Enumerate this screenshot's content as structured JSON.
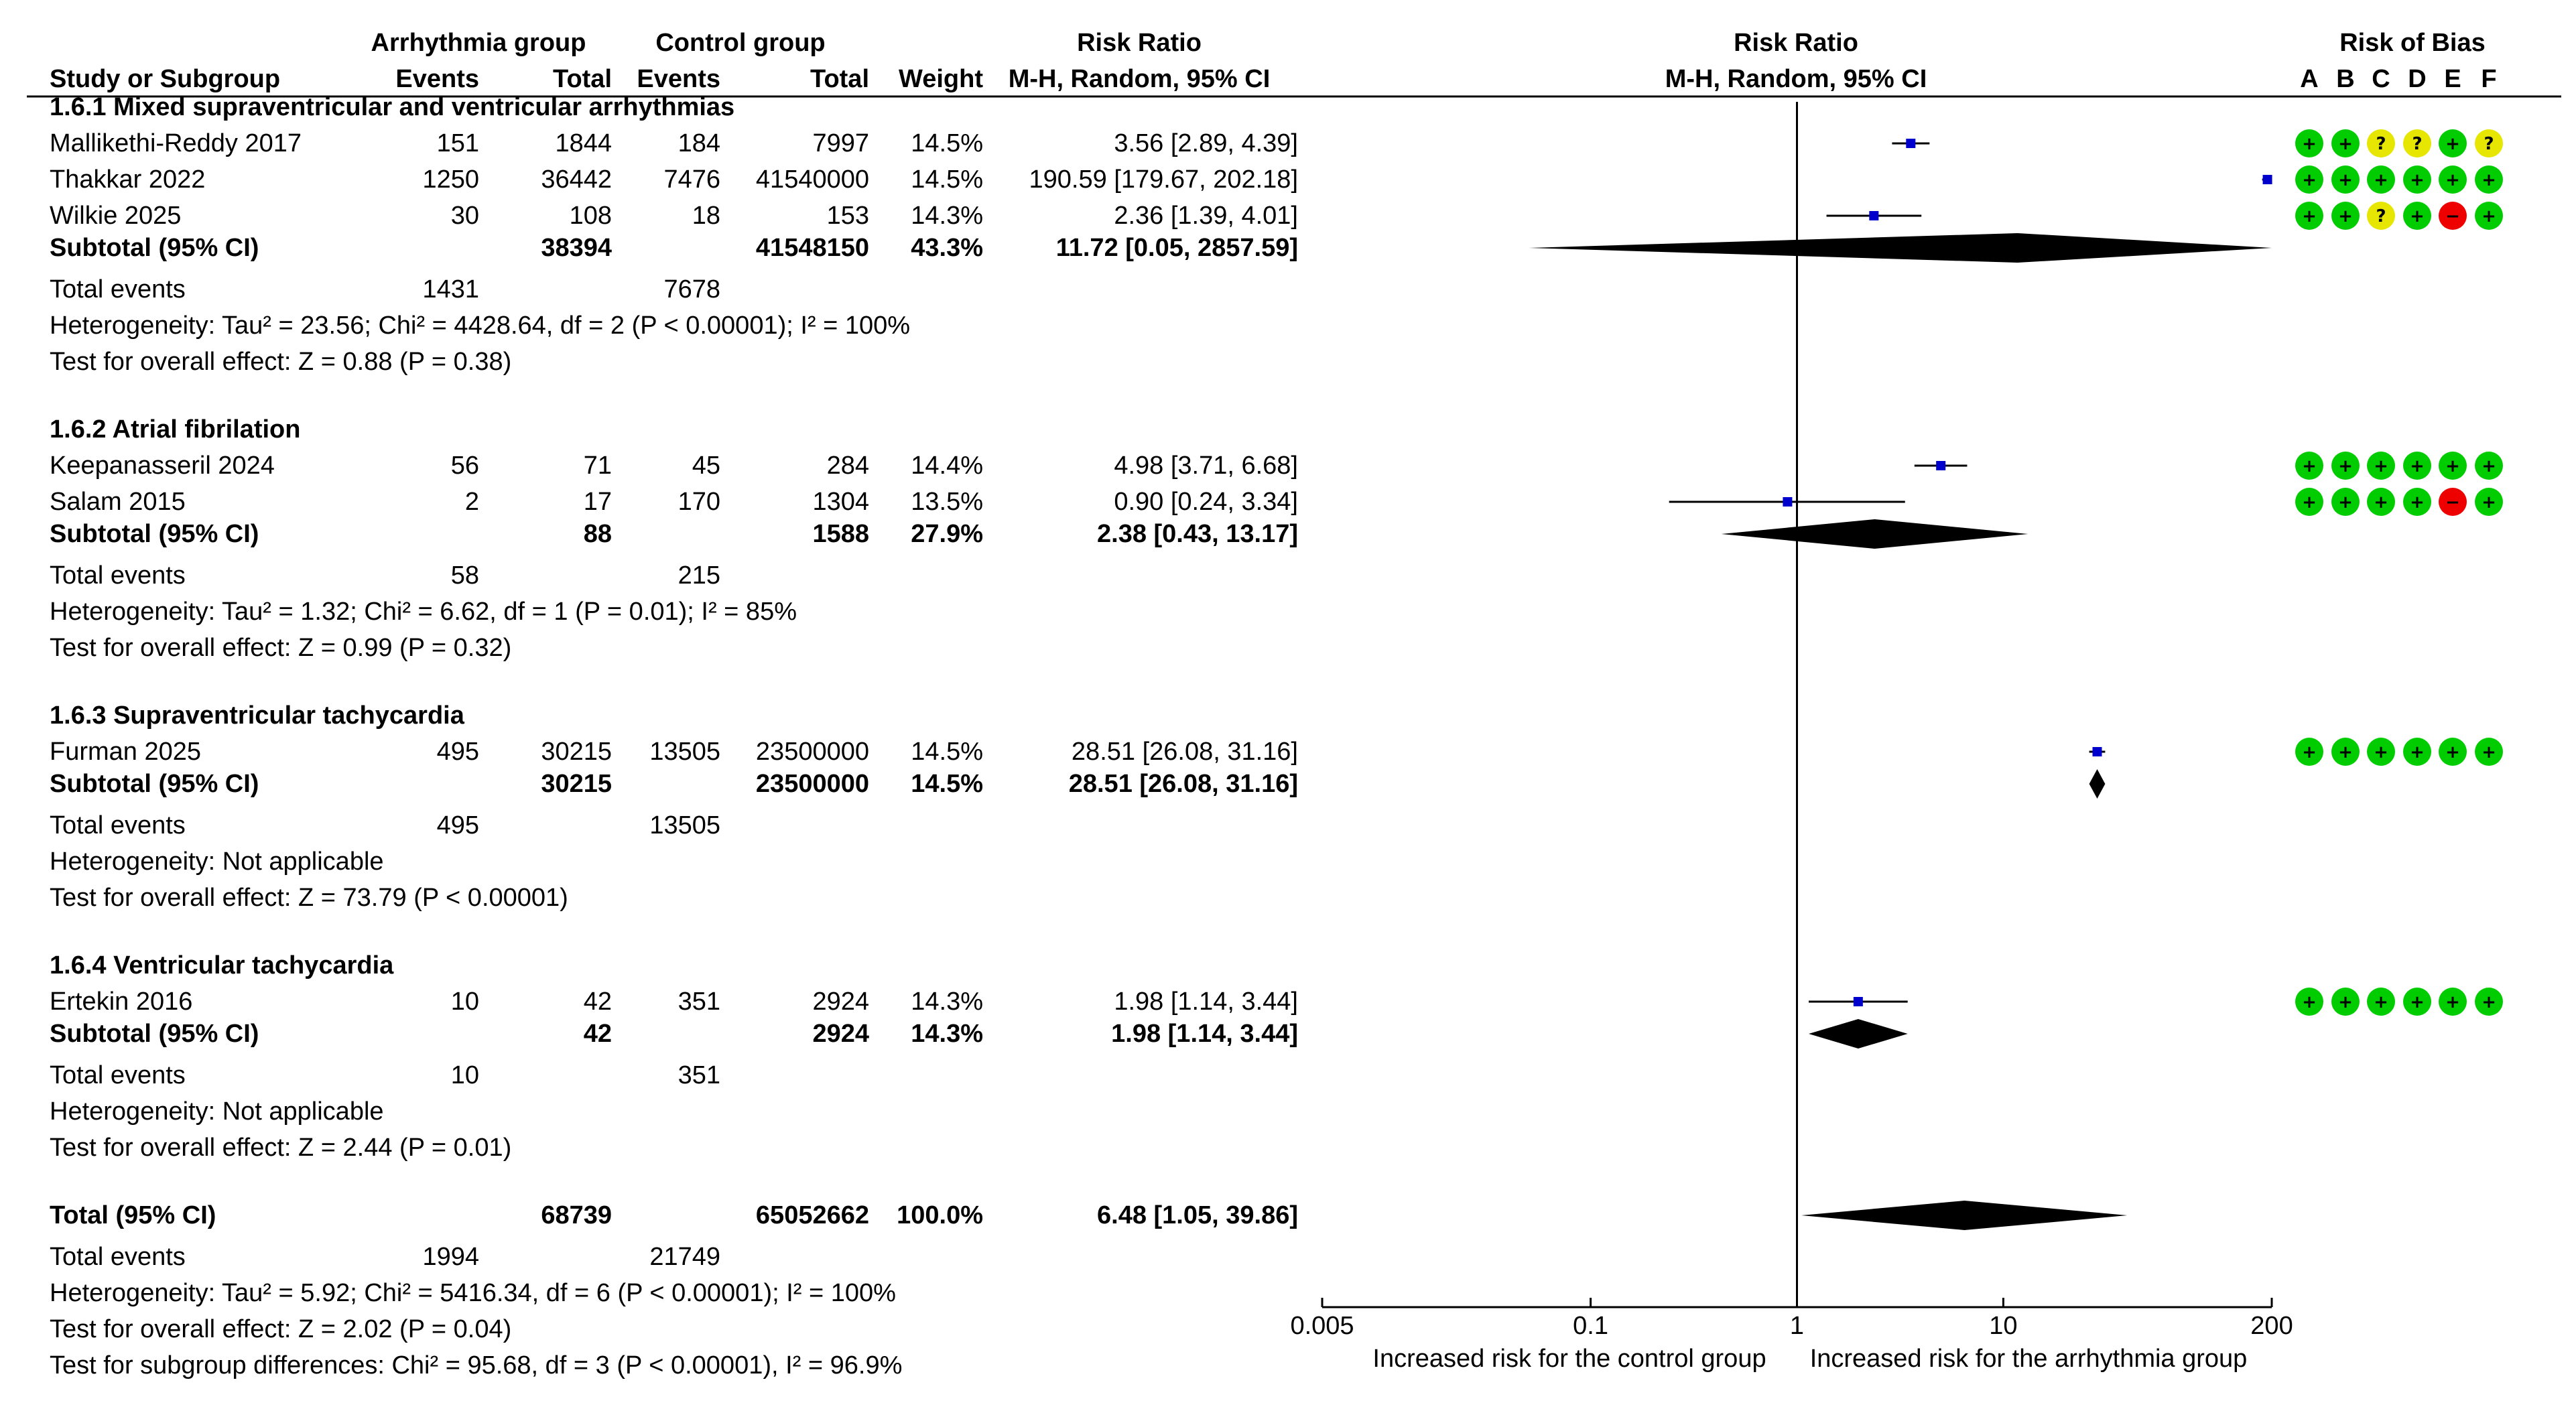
{
  "headers": {
    "study": "Study or Subgroup",
    "exp_group": "Arrhythmia group",
    "ctl_group": "Control group",
    "events": "Events",
    "total": "Total",
    "weight": "Weight",
    "rr": "Risk Ratio",
    "method": "M-H, Random, 95% CI",
    "rob": "Risk of Bias",
    "rob_letters": [
      "A",
      "B",
      "C",
      "D",
      "E",
      "F"
    ]
  },
  "colors": {
    "low": "#00cc00",
    "unclear": "#e6e600",
    "high": "#ee0000",
    "square": "#0000cc",
    "diamond": "#000000"
  },
  "chart_data": {
    "type": "forest",
    "scale": "log",
    "ticks": [
      0.005,
      0.1,
      1,
      10,
      200
    ],
    "tick_labels": [
      "0.005",
      "0.1",
      "1",
      "10",
      "200"
    ],
    "xlim": [
      0.005,
      200
    ],
    "null_value": 1,
    "left_label": "Increased risk for the control group",
    "right_label": "Increased risk for the arrhythmia group",
    "subgroups": [
      {
        "title": "1.6.1 Mixed supraventricular and ventricular arrhythmias",
        "studies": [
          {
            "name": "Mallikethi-Reddy 2017",
            "e_events": "151",
            "e_total": "1844",
            "c_events": "184",
            "c_total": "7997",
            "weight": "14.5%",
            "ci": "3.56 [2.89, 4.39]",
            "rr": 3.56,
            "low": 2.89,
            "high": 4.39,
            "rob": [
              "+",
              "+",
              "?",
              "?",
              "+",
              "?"
            ]
          },
          {
            "name": "Thakkar 2022",
            "e_events": "1250",
            "e_total": "36442",
            "c_events": "7476",
            "c_total": "41540000",
            "weight": "14.5%",
            "ci": "190.59 [179.67, 202.18]",
            "rr": 190.59,
            "low": 179.67,
            "high": 202.18,
            "rob": [
              "+",
              "+",
              "+",
              "+",
              "+",
              "+"
            ]
          },
          {
            "name": "Wilkie 2025",
            "e_events": "30",
            "e_total": "108",
            "c_events": "18",
            "c_total": "153",
            "weight": "14.3%",
            "ci": "2.36 [1.39, 4.01]",
            "rr": 2.36,
            "low": 1.39,
            "high": 4.01,
            "rob": [
              "+",
              "+",
              "?",
              "+",
              "-",
              "+"
            ]
          }
        ],
        "subtotal": {
          "label": "Subtotal (95% CI)",
          "e_total": "38394",
          "c_total": "41548150",
          "weight": "43.3%",
          "ci": "11.72 [0.05, 2857.59]",
          "rr": 11.72,
          "low": 0.05,
          "high": 2857.59
        },
        "total_events": {
          "label": "Total events",
          "e": "1431",
          "c": "7678"
        },
        "heterogeneity": "Heterogeneity: Tau² = 23.56; Chi² = 4428.64, df = 2 (P < 0.00001); I² = 100%",
        "overall_effect": "Test for overall effect: Z = 0.88 (P = 0.38)"
      },
      {
        "title": "1.6.2 Atrial fibrilation",
        "studies": [
          {
            "name": "Keepanasseril 2024",
            "e_events": "56",
            "e_total": "71",
            "c_events": "45",
            "c_total": "284",
            "weight": "14.4%",
            "ci": "4.98 [3.71, 6.68]",
            "rr": 4.98,
            "low": 3.71,
            "high": 6.68,
            "rob": [
              "+",
              "+",
              "+",
              "+",
              "+",
              "+"
            ]
          },
          {
            "name": "Salam 2015",
            "e_events": "2",
            "e_total": "17",
            "c_events": "170",
            "c_total": "1304",
            "weight": "13.5%",
            "ci": "0.90 [0.24, 3.34]",
            "rr": 0.9,
            "low": 0.24,
            "high": 3.34,
            "rob": [
              "+",
              "+",
              "+",
              "+",
              "-",
              "+"
            ]
          }
        ],
        "subtotal": {
          "label": "Subtotal (95% CI)",
          "e_total": "88",
          "c_total": "1588",
          "weight": "27.9%",
          "ci": "2.38 [0.43, 13.17]",
          "rr": 2.38,
          "low": 0.43,
          "high": 13.17
        },
        "total_events": {
          "label": "Total events",
          "e": "58",
          "c": "215"
        },
        "heterogeneity": "Heterogeneity: Tau² = 1.32; Chi² = 6.62, df = 1 (P = 0.01); I² = 85%",
        "overall_effect": "Test for overall effect: Z = 0.99 (P = 0.32)"
      },
      {
        "title": "1.6.3 Supraventricular tachycardia",
        "studies": [
          {
            "name": "Furman 2025",
            "e_events": "495",
            "e_total": "30215",
            "c_events": "13505",
            "c_total": "23500000",
            "weight": "14.5%",
            "ci": "28.51 [26.08, 31.16]",
            "rr": 28.51,
            "low": 26.08,
            "high": 31.16,
            "rob": [
              "+",
              "+",
              "+",
              "+",
              "+",
              "+"
            ]
          }
        ],
        "subtotal": {
          "label": "Subtotal (95% CI)",
          "e_total": "30215",
          "c_total": "23500000",
          "weight": "14.5%",
          "ci": "28.51 [26.08, 31.16]",
          "rr": 28.51,
          "low": 26.08,
          "high": 31.16
        },
        "total_events": {
          "label": "Total events",
          "e": "495",
          "c": "13505"
        },
        "heterogeneity": "Heterogeneity: Not applicable",
        "overall_effect": "Test for overall effect: Z = 73.79 (P < 0.00001)"
      },
      {
        "title": "1.6.4 Ventricular tachycardia",
        "studies": [
          {
            "name": "Ertekin 2016",
            "e_events": "10",
            "e_total": "42",
            "c_events": "351",
            "c_total": "2924",
            "weight": "14.3%",
            "ci": "1.98 [1.14, 3.44]",
            "rr": 1.98,
            "low": 1.14,
            "high": 3.44,
            "rob": [
              "+",
              "+",
              "+",
              "+",
              "+",
              "+"
            ]
          }
        ],
        "subtotal": {
          "label": "Subtotal (95% CI)",
          "e_total": "42",
          "c_total": "2924",
          "weight": "14.3%",
          "ci": "1.98 [1.14, 3.44]",
          "rr": 1.98,
          "low": 1.14,
          "high": 3.44
        },
        "total_events": {
          "label": "Total events",
          "e": "10",
          "c": "351"
        },
        "heterogeneity": "Heterogeneity: Not applicable",
        "overall_effect": "Test for overall effect: Z = 2.44 (P = 0.01)"
      }
    ],
    "overall": {
      "label": "Total (95% CI)",
      "e_total": "68739",
      "c_total": "65052662",
      "weight": "100.0%",
      "ci": "6.48 [1.05, 39.86]",
      "rr": 6.48,
      "low": 1.05,
      "high": 39.86,
      "total_events": {
        "label": "Total events",
        "e": "1994",
        "c": "21749"
      },
      "heterogeneity": "Heterogeneity: Tau² = 5.92; Chi² = 5416.34, df = 6 (P < 0.00001); I² = 100%",
      "overall_effect": "Test for overall effect: Z = 2.02 (P = 0.04)",
      "subgroup_diff": "Test for subgroup differences: Chi² = 95.68, df = 3 (P < 0.00001), I² = 96.9%"
    }
  }
}
